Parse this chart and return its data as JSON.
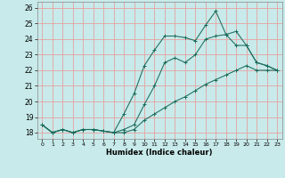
{
  "xlabel": "Humidex (Indice chaleur)",
  "background_color": "#c8eaea",
  "grid_color": "#e8a0a0",
  "line_color": "#1a6b5a",
  "xlim": [
    -0.5,
    23.5
  ],
  "ylim": [
    17.6,
    26.4
  ],
  "xticks": [
    0,
    1,
    2,
    3,
    4,
    5,
    6,
    7,
    8,
    9,
    10,
    11,
    12,
    13,
    14,
    15,
    16,
    17,
    18,
    19,
    20,
    21,
    22,
    23
  ],
  "yticks": [
    18,
    19,
    20,
    21,
    22,
    23,
    24,
    25,
    26
  ],
  "line1_x": [
    0,
    1,
    2,
    3,
    4,
    5,
    6,
    7,
    8,
    9,
    10,
    11,
    12,
    13,
    14,
    15,
    16,
    17,
    18,
    19,
    20,
    21,
    22,
    23
  ],
  "line1_y": [
    18.5,
    18.0,
    18.2,
    18.0,
    18.2,
    18.2,
    18.1,
    18.0,
    19.2,
    20.5,
    22.3,
    23.3,
    24.2,
    24.2,
    24.1,
    23.9,
    24.9,
    25.8,
    24.3,
    24.5,
    23.6,
    22.5,
    22.3,
    22.0
  ],
  "line2_x": [
    0,
    1,
    2,
    3,
    4,
    5,
    6,
    7,
    8,
    9,
    10,
    11,
    12,
    13,
    14,
    15,
    16,
    17,
    18,
    19,
    20,
    21,
    22,
    23
  ],
  "line2_y": [
    18.5,
    18.0,
    18.2,
    18.0,
    18.2,
    18.2,
    18.1,
    18.0,
    18.2,
    18.5,
    19.8,
    21.0,
    22.5,
    22.8,
    22.5,
    23.0,
    24.0,
    24.2,
    24.3,
    23.6,
    23.6,
    22.5,
    22.3,
    22.0
  ],
  "line3_x": [
    0,
    1,
    2,
    3,
    4,
    5,
    6,
    7,
    8,
    9,
    10,
    11,
    12,
    13,
    14,
    15,
    16,
    17,
    18,
    19,
    20,
    21,
    22,
    23
  ],
  "line3_y": [
    18.5,
    18.0,
    18.2,
    18.0,
    18.2,
    18.2,
    18.1,
    18.0,
    18.0,
    18.2,
    18.8,
    19.2,
    19.6,
    20.0,
    20.3,
    20.7,
    21.1,
    21.4,
    21.7,
    22.0,
    22.3,
    22.0,
    22.0,
    22.0
  ]
}
